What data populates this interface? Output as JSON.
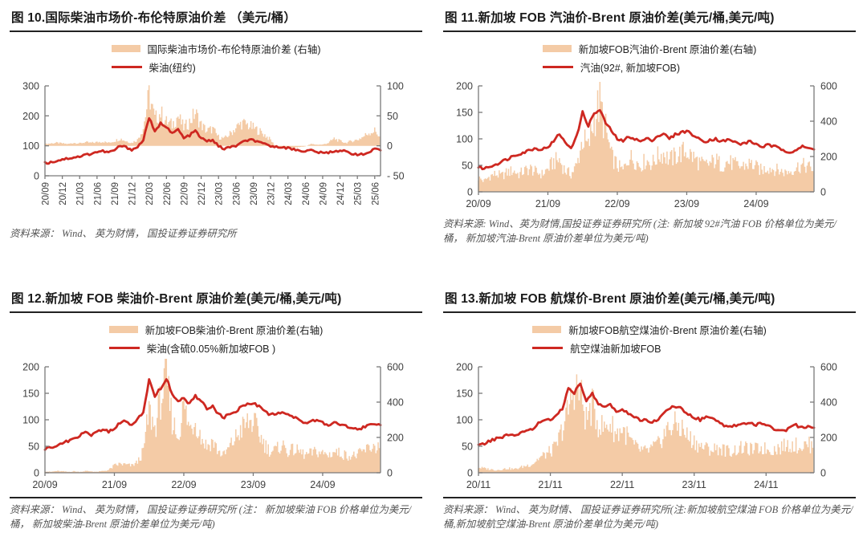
{
  "colors": {
    "line": "#ce2821",
    "area": "#f4cba6",
    "axis": "#7a7a7a",
    "tick_text": "#404040",
    "title_text": "#1a1a1a",
    "source_text": "#555555",
    "rule": "#222222"
  },
  "chart_data": [
    {
      "type": "line+area",
      "title": "图 10.国际柴油市场价-布伦特原油价差 （美元/桶）",
      "legend": [
        {
          "label": "国际柴油市场价-布伦特原油价差 (右轴)",
          "swatch": "area"
        },
        {
          "label": "柴油(纽约)",
          "swatch": "line"
        }
      ],
      "source": "资料来源： Wind、 英为财情， 国投证券证券研究所",
      "left_axis": {
        "range": [
          0,
          300
        ],
        "ticks": [
          {
            "v": 0,
            "label": "0"
          },
          {
            "v": 100,
            "label": "100"
          },
          {
            "v": 200,
            "label": "200"
          },
          {
            "v": 300,
            "label": "300"
          }
        ]
      },
      "right_axis": {
        "range": [
          -50,
          100
        ],
        "ticks": [
          {
            "v": -50,
            "label": "- 50"
          },
          {
            "v": 0,
            "label": "0"
          },
          {
            "v": 50,
            "label": "50"
          },
          {
            "v": 100,
            "label": "100"
          }
        ]
      },
      "x_labels_vertical": true,
      "x_ticks": [
        {
          "i": 0,
          "label": "20/09"
        },
        {
          "i": 3,
          "label": "20/12"
        },
        {
          "i": 6,
          "label": "21/03"
        },
        {
          "i": 9,
          "label": "21/06"
        },
        {
          "i": 12,
          "label": "21/09"
        },
        {
          "i": 15,
          "label": "21/12"
        },
        {
          "i": 18,
          "label": "22/03"
        },
        {
          "i": 21,
          "label": "22/06"
        },
        {
          "i": 24,
          "label": "22/09"
        },
        {
          "i": 27,
          "label": "22/12"
        },
        {
          "i": 30,
          "label": "23/03"
        },
        {
          "i": 33,
          "label": "23/06"
        },
        {
          "i": 36,
          "label": "23/09"
        },
        {
          "i": 39,
          "label": "23/12"
        },
        {
          "i": 42,
          "label": "24/03"
        },
        {
          "i": 45,
          "label": "24/06"
        },
        {
          "i": 48,
          "label": "24/09"
        },
        {
          "i": 51,
          "label": "24/12"
        },
        {
          "i": 54,
          "label": "25/03"
        },
        {
          "i": 57,
          "label": "25/06"
        }
      ],
      "series": [
        {
          "name": "国际柴油市场价-布伦特原油价差 (右轴)",
          "type": "area",
          "axis": "right",
          "values": [
            3,
            4,
            5,
            4,
            3,
            5,
            4,
            6,
            5,
            6,
            7,
            5,
            8,
            12,
            8,
            5,
            10,
            30,
            85,
            45,
            55,
            40,
            35,
            50,
            30,
            40,
            55,
            35,
            25,
            28,
            15,
            12,
            20,
            30,
            38,
            35,
            30,
            25,
            18,
            10,
            -3,
            -4,
            -2,
            -3,
            -2,
            -1,
            3,
            2,
            2,
            5,
            12,
            8,
            5,
            8,
            10,
            15,
            22,
            25,
            15
          ]
        },
        {
          "name": "柴油(纽约)",
          "type": "line",
          "axis": "left",
          "values": [
            42,
            45,
            50,
            55,
            58,
            62,
            64,
            70,
            74,
            80,
            82,
            78,
            85,
            100,
            95,
            88,
            95,
            120,
            195,
            145,
            175,
            165,
            140,
            155,
            125,
            135,
            150,
            125,
            115,
            120,
            98,
            90,
            95,
            100,
            110,
            118,
            120,
            110,
            105,
            100,
            95,
            98,
            92,
            88,
            85,
            82,
            85,
            80,
            75,
            78,
            82,
            85,
            80,
            75,
            72,
            70,
            78,
            88,
            85
          ]
        }
      ]
    },
    {
      "type": "line+area",
      "title": "图 11.新加坡 FOB 汽油价-Brent 原油价差(美元/桶,美元/吨)",
      "legend": [
        {
          "label": "新加坡FOB汽油价-Brent 原油价差(右轴)",
          "swatch": "area"
        },
        {
          "label": "汽油(92#, 新加坡FOB)",
          "swatch": "line"
        }
      ],
      "source": "资料来源: Wind、英为财情,国投证券证券研究所 (注: 新加坡 92#汽油 FOB 价格单位为美元/桶， 新加坡汽油-Brent 原油价差单位为美元/吨)",
      "left_axis": {
        "range": [
          0,
          200
        ],
        "ticks": [
          {
            "v": 0,
            "label": "0"
          },
          {
            "v": 50,
            "label": "50"
          },
          {
            "v": 100,
            "label": "100"
          },
          {
            "v": 150,
            "label": "150"
          },
          {
            "v": 200,
            "label": "200"
          }
        ]
      },
      "right_axis": {
        "range": [
          0,
          600
        ],
        "ticks": [
          {
            "v": 0,
            "label": "0"
          },
          {
            "v": 200,
            "label": "200"
          },
          {
            "v": 400,
            "label": "400"
          },
          {
            "v": 600,
            "label": "600"
          }
        ]
      },
      "x_labels_vertical": false,
      "x_ticks": [
        {
          "i": 0,
          "label": "20/09"
        },
        {
          "i": 12,
          "label": "21/09"
        },
        {
          "i": 24,
          "label": "22/09"
        },
        {
          "i": 36,
          "label": "23/09"
        },
        {
          "i": 48,
          "label": "24/09"
        }
      ],
      "series": [
        {
          "name": "新加坡FOB汽油价-Brent 原油价差(右轴)",
          "type": "area",
          "axis": "right",
          "values": [
            80,
            60,
            90,
            100,
            90,
            110,
            120,
            100,
            120,
            130,
            110,
            100,
            130,
            170,
            180,
            120,
            100,
            150,
            300,
            250,
            420,
            500,
            350,
            200,
            150,
            120,
            200,
            180,
            150,
            180,
            160,
            200,
            220,
            180,
            200,
            220,
            230,
            200,
            170,
            150,
            160,
            180,
            150,
            170,
            160,
            140,
            150,
            160,
            140,
            120,
            140,
            130,
            120,
            110,
            120,
            140,
            150,
            140,
            130
          ]
        },
        {
          "name": "汽油(92#, 新加坡FOB)",
          "type": "line",
          "axis": "left",
          "values": [
            47,
            44,
            48,
            52,
            57,
            62,
            68,
            72,
            75,
            80,
            82,
            80,
            85,
            95,
            110,
            92,
            84,
            105,
            150,
            125,
            148,
            154,
            130,
            115,
            100,
            95,
            105,
            100,
            95,
            100,
            98,
            105,
            110,
            100,
            108,
            112,
            115,
            108,
            100,
            95,
            98,
            100,
            95,
            98,
            96,
            90,
            92,
            95,
            90,
            85,
            88,
            86,
            82,
            78,
            75,
            80,
            85,
            82,
            80
          ]
        }
      ]
    },
    {
      "type": "line+area",
      "title": "图 12.新加坡 FOB 柴油价-Brent 原油价差(美元/桶,美元/吨)",
      "legend": [
        {
          "label": "新加坡FOB柴油价-Brent 原油价差(右轴)",
          "swatch": "area"
        },
        {
          "label": "柴油(含硫0.05%新加坡FOB )",
          "swatch": "line"
        }
      ],
      "source": "资料来源： Wind、 英为财情， 国投证券证券研究所 (注： 新加坡柴油 FOB 价格单位为美元/桶， 新加坡柴油-Brent 原油价差单位为美元/吨)",
      "left_axis": {
        "range": [
          0,
          200
        ],
        "ticks": [
          {
            "v": 0,
            "label": "0"
          },
          {
            "v": 50,
            "label": "50"
          },
          {
            "v": 100,
            "label": "100"
          },
          {
            "v": 150,
            "label": "150"
          },
          {
            "v": 200,
            "label": "200"
          }
        ]
      },
      "right_axis": {
        "range": [
          0,
          600
        ],
        "ticks": [
          {
            "v": 0,
            "label": "0"
          },
          {
            "v": 200,
            "label": "200"
          },
          {
            "v": 400,
            "label": "400"
          },
          {
            "v": 600,
            "label": "600"
          }
        ]
      },
      "x_labels_vertical": false,
      "x_ticks": [
        {
          "i": 0,
          "label": "20/09"
        },
        {
          "i": 12,
          "label": "21/09"
        },
        {
          "i": 24,
          "label": "22/09"
        },
        {
          "i": 36,
          "label": "23/09"
        },
        {
          "i": 48,
          "label": "24/09"
        }
      ],
      "series": [
        {
          "name": "新加坡FOB柴油价-Brent 原油价差(右轴)",
          "type": "area",
          "axis": "right",
          "values": [
            8,
            5,
            10,
            8,
            5,
            8,
            5,
            10,
            8,
            5,
            10,
            15,
            40,
            50,
            45,
            40,
            60,
            120,
            350,
            250,
            420,
            520,
            300,
            200,
            380,
            250,
            300,
            200,
            150,
            180,
            120,
            100,
            150,
            200,
            250,
            280,
            290,
            220,
            160,
            120,
            130,
            160,
            120,
            130,
            120,
            100,
            110,
            120,
            110,
            100,
            120,
            110,
            100,
            95,
            100,
            120,
            140,
            150,
            140
          ]
        },
        {
          "name": "柴油(含硫0.05%新加坡FOB )",
          "type": "line",
          "axis": "left",
          "values": [
            45,
            48,
            52,
            55,
            60,
            65,
            70,
            75,
            72,
            78,
            80,
            78,
            82,
            95,
            98,
            88,
            100,
            115,
            175,
            145,
            160,
            178,
            150,
            135,
            140,
            130,
            145,
            135,
            120,
            125,
            110,
            105,
            110,
            115,
            125,
            130,
            133,
            125,
            115,
            110,
            112,
            115,
            110,
            105,
            100,
            95,
            98,
            100,
            95,
            90,
            95,
            92,
            88,
            85,
            82,
            85,
            90,
            92,
            90
          ]
        }
      ]
    },
    {
      "type": "line+area",
      "title": "图 13.新加坡 FOB 航煤价-Brent 原油价差(美元/桶,美元/吨)",
      "legend": [
        {
          "label": "新加坡FOB航空煤油价-Brent 原油价差(右轴)",
          "swatch": "area"
        },
        {
          "label": "航空煤油新加坡FOB",
          "swatch": "line"
        }
      ],
      "source": "资料来源： Wind、 英为财情、 国投证券证券研究所(注:新加坡航空煤油 FOB 价格单位为美元/桶,新加坡航空煤油-Brent 原油价差单位为美元/吨)",
      "left_axis": {
        "range": [
          0,
          200
        ],
        "ticks": [
          {
            "v": 0,
            "label": "0"
          },
          {
            "v": 50,
            "label": "50"
          },
          {
            "v": 100,
            "label": "100"
          },
          {
            "v": 150,
            "label": "150"
          },
          {
            "v": 200,
            "label": "200"
          }
        ]
      },
      "right_axis": {
        "range": [
          0,
          600
        ],
        "ticks": [
          {
            "v": 0,
            "label": "0"
          },
          {
            "v": 200,
            "label": "200"
          },
          {
            "v": 400,
            "label": "400"
          },
          {
            "v": 600,
            "label": "600"
          }
        ]
      },
      "x_labels_vertical": false,
      "x_ticks": [
        {
          "i": 0,
          "label": "20/11"
        },
        {
          "i": 12,
          "label": "21/11"
        },
        {
          "i": 24,
          "label": "22/11"
        },
        {
          "i": 36,
          "label": "23/11"
        },
        {
          "i": 48,
          "label": "24/11"
        }
      ],
      "series": [
        {
          "name": "新加坡FOB航空煤油价-Brent 原油价差(右轴)",
          "type": "area",
          "axis": "right",
          "values": [
            30,
            25,
            20,
            15,
            20,
            25,
            20,
            30,
            40,
            50,
            80,
            100,
            120,
            150,
            250,
            350,
            500,
            450,
            300,
            380,
            280,
            250,
            280,
            220,
            250,
            200,
            150,
            130,
            120,
            140,
            160,
            220,
            260,
            270,
            250,
            200,
            180,
            150,
            140,
            130,
            140,
            130,
            120,
            130,
            140,
            135,
            130,
            140,
            135,
            130,
            140,
            150,
            160,
            155,
            150,
            160,
            150
          ]
        },
        {
          "name": "航空煤油新加坡FOB",
          "type": "line",
          "axis": "left",
          "values": [
            52,
            55,
            60,
            65,
            68,
            72,
            70,
            75,
            78,
            82,
            95,
            98,
            100,
            110,
            120,
            160,
            150,
            170,
            135,
            150,
            130,
            125,
            128,
            115,
            120,
            112,
            105,
            100,
            98,
            95,
            100,
            115,
            122,
            125,
            120,
            110,
            105,
            100,
            105,
            102,
            98,
            90,
            88,
            90,
            92,
            95,
            90,
            92,
            88,
            85,
            80,
            78,
            85,
            90,
            85,
            88,
            85
          ]
        }
      ]
    }
  ]
}
